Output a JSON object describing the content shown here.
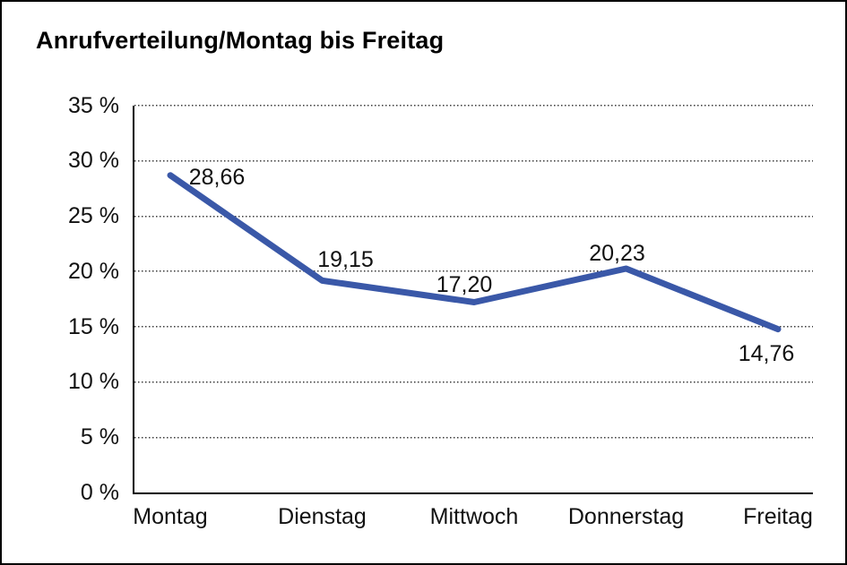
{
  "chart_data": {
    "type": "line",
    "title": "Anrufverteilung/Montag bis Freitag",
    "categories": [
      "Montag",
      "Dienstag",
      "Mittwoch",
      "Donnerstag",
      "Freitag"
    ],
    "values": [
      28.66,
      19.15,
      17.2,
      20.23,
      14.76
    ],
    "data_labels": [
      "28,66",
      "19,15",
      "17,20",
      "20,23",
      "14,76"
    ],
    "xlabel": "",
    "ylabel": "",
    "ylim": [
      0,
      35
    ],
    "yticks": [
      0,
      5,
      10,
      15,
      20,
      25,
      30,
      35
    ],
    "ytick_labels": [
      "0 %",
      "5 %",
      "10 %",
      "15 %",
      "20 %",
      "25 %",
      "30 %",
      "35 %"
    ],
    "grid": "horizontal-dotted",
    "legend": "none",
    "line_color": "#3A58A8",
    "axis_color": "#000000",
    "background_color": "#FFFFFF"
  }
}
